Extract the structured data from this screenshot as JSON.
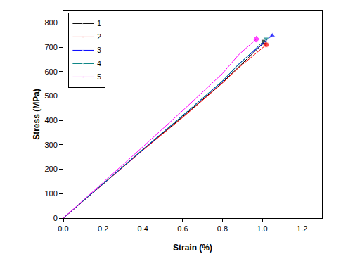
{
  "chart_data": {
    "type": "line",
    "x_label": "Strain (%)",
    "y_label": "Stress (MPa)",
    "series": [
      {
        "name": "1",
        "color": "#000000",
        "marker": "square",
        "x": [
          0,
          0.2,
          0.4,
          0.6,
          0.8,
          0.88,
          1.01
        ],
        "values": [
          0,
          140,
          280,
          415,
          555,
          618,
          720
        ]
      },
      {
        "name": "2",
        "color": "#ff0000",
        "marker": "circle",
        "x": [
          0,
          0.2,
          0.4,
          0.6,
          0.8,
          0.88,
          1.02
        ],
        "values": [
          0,
          140,
          278,
          412,
          553,
          615,
          710
        ]
      },
      {
        "name": "3",
        "color": "#0000ff",
        "marker": "triangle-up",
        "x": [
          0,
          0.2,
          0.4,
          0.6,
          0.8,
          0.88,
          1.05
        ],
        "values": [
          0,
          140,
          280,
          418,
          560,
          630,
          748
        ]
      },
      {
        "name": "4",
        "color": "#008080",
        "marker": "triangle-down",
        "x": [
          0,
          0.2,
          0.4,
          0.6,
          0.8,
          0.88,
          1.02
        ],
        "values": [
          0,
          141,
          282,
          420,
          562,
          628,
          735
        ]
      },
      {
        "name": "5",
        "color": "#ff00ff",
        "marker": "diamond",
        "x": [
          0,
          0.2,
          0.4,
          0.6,
          0.8,
          0.88,
          0.97
        ],
        "values": [
          0,
          145,
          292,
          440,
          592,
          668,
          733
        ]
      }
    ],
    "xlim": [
      0,
      1.3
    ],
    "xticks": [
      {
        "value": 0,
        "label": "0.0"
      },
      {
        "value": 0.2,
        "label": "0.2"
      },
      {
        "value": 0.4,
        "label": "0.4"
      },
      {
        "value": 0.6,
        "label": "0.6"
      },
      {
        "value": 0.8,
        "label": "0.8"
      },
      {
        "value": 1.0,
        "label": "1.0"
      },
      {
        "value": 1.2,
        "label": "1.2"
      }
    ],
    "ylim": [
      0,
      850
    ],
    "yticks": [
      0,
      100,
      200,
      300,
      400,
      500,
      600,
      700,
      800
    ],
    "grid": false,
    "legend": "top-left"
  }
}
